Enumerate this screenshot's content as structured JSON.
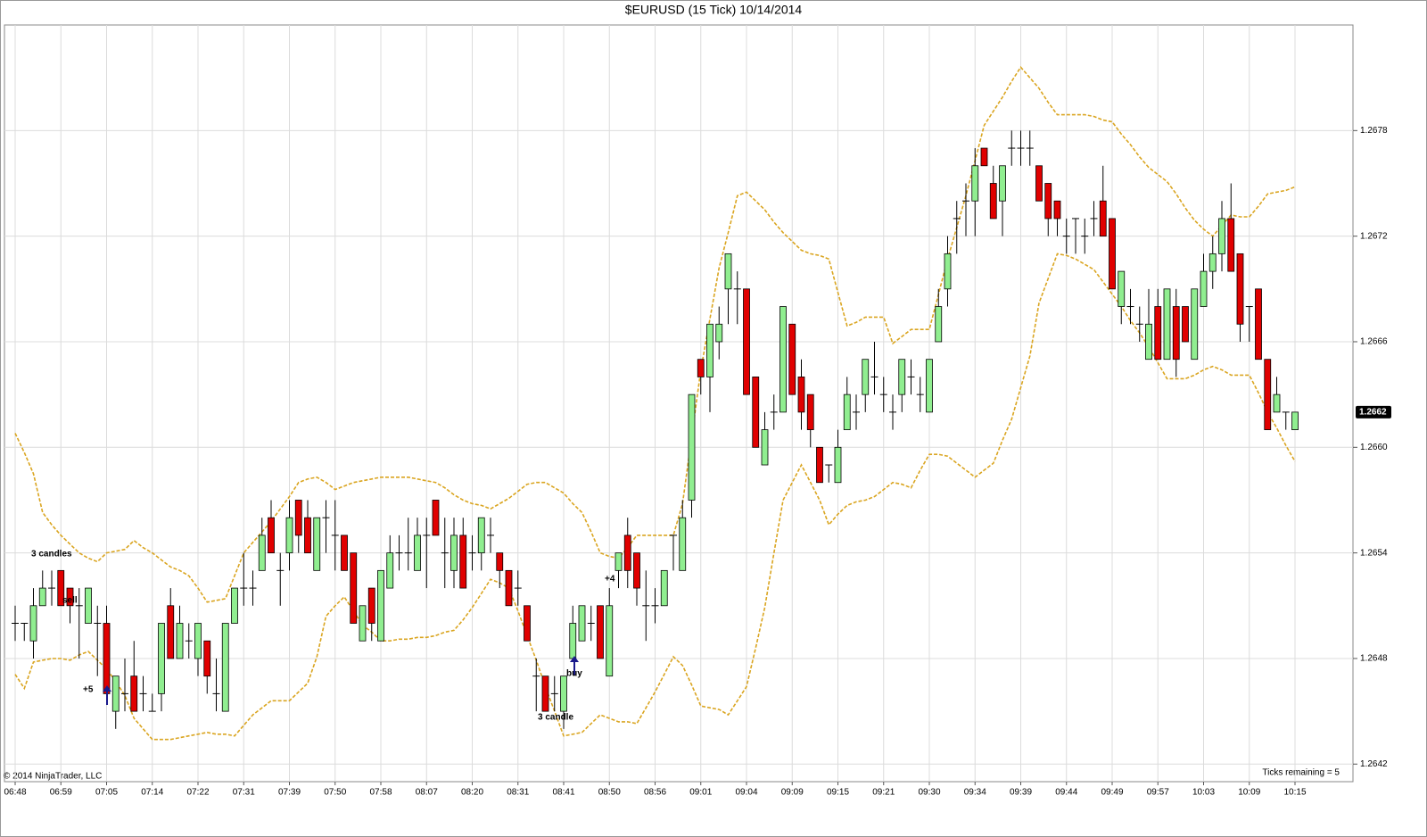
{
  "chart_data": {
    "type": "candlestick",
    "title": "$EURUSD (15 Tick)  10/14/2014",
    "copyright": "© 2014 NinjaTrader, LLC",
    "status": "Ticks remaining = 5",
    "categories": [
      "06:48",
      null,
      null,
      null,
      null,
      "06:59",
      null,
      null,
      null,
      null,
      "07:05",
      null,
      null,
      null,
      null,
      "07:14",
      null,
      null,
      null,
      null,
      "07:22",
      null,
      null,
      null,
      null,
      "07:31",
      null,
      null,
      null,
      null,
      "07:39",
      null,
      null,
      null,
      null,
      "07:50",
      null,
      null,
      null,
      null,
      "07:58",
      null,
      null,
      null,
      null,
      "08:07",
      null,
      null,
      null,
      null,
      "08:20",
      null,
      null,
      null,
      null,
      "08:31",
      null,
      null,
      null,
      null,
      "08:41",
      null,
      null,
      null,
      null,
      "08:50",
      null,
      null,
      null,
      null,
      "08:56",
      null,
      null,
      null,
      null,
      "09:01",
      null,
      null,
      null,
      null,
      "09:04",
      null,
      null,
      null,
      null,
      "09:09",
      null,
      null,
      null,
      null,
      "09:15",
      null,
      null,
      null,
      null,
      "09:21",
      null,
      null,
      null,
      null,
      "09:30",
      null,
      null,
      null,
      null,
      "09:34",
      null,
      null,
      null,
      null,
      "09:39",
      null,
      null,
      null,
      null,
      "09:44",
      null,
      null,
      null,
      null,
      "09:49",
      null,
      null,
      null,
      null,
      "09:57",
      null,
      null,
      null,
      null,
      "10:03",
      null,
      null,
      null,
      null,
      "10:09",
      null,
      null,
      null,
      null,
      "10:15"
    ],
    "open": [
      1.265,
      1.265,
      1.2649,
      1.2651,
      1.2652,
      1.2653,
      1.2652,
      1.2651,
      1.265,
      1.265,
      1.265,
      1.2645,
      1.2646,
      1.2647,
      1.2646,
      1.2645,
      1.2646,
      1.2651,
      1.2648,
      1.2649,
      1.2648,
      1.2649,
      1.2646,
      1.2645,
      1.265,
      1.2652,
      1.2652,
      1.2653,
      1.2656,
      1.2653,
      1.2654,
      1.2657,
      1.2656,
      1.2653,
      1.2656,
      1.2655,
      1.2655,
      1.2654,
      1.2649,
      1.2652,
      1.2649,
      1.2652,
      1.2654,
      1.2654,
      1.2653,
      1.2655,
      1.2657,
      1.2654,
      1.2653,
      1.2655,
      1.2654,
      1.2654,
      1.2655,
      1.2654,
      1.2653,
      1.2652,
      1.2651,
      1.2647,
      1.2647,
      1.2646,
      1.2645,
      1.2648,
      1.2649,
      1.265,
      1.2651,
      1.2647,
      1.2653,
      1.2655,
      1.2654,
      1.2651,
      1.2651,
      1.2651,
      1.2655,
      1.2653,
      1.2657,
      1.2665,
      1.2664,
      1.2666,
      1.2669,
      1.2669,
      1.2669,
      1.2664,
      1.2659,
      1.2662,
      1.2662,
      1.2667,
      1.2664,
      1.2663,
      1.266,
      1.2659,
      1.2658,
      1.2661,
      1.2662,
      1.2663,
      1.2664,
      1.2663,
      1.2662,
      1.2663,
      1.2664,
      1.2663,
      1.2662,
      1.2666,
      1.2669,
      1.2673,
      1.2674,
      1.2674,
      1.2677,
      1.2675,
      1.2674,
      1.2677,
      1.2677,
      1.2677,
      1.2676,
      1.2675,
      1.2674,
      1.2672,
      1.2673,
      1.2672,
      1.2673,
      1.2674,
      1.2673,
      1.2668,
      1.2668,
      1.2667,
      1.2665,
      1.2668,
      1.2665,
      1.2668,
      1.2668,
      1.2665,
      1.2668,
      1.267,
      1.2671,
      1.2673,
      1.2671,
      1.2668,
      1.2669,
      1.2665,
      1.2662,
      1.2662,
      1.2661
    ],
    "high": [
      1.2651,
      1.265,
      1.2652,
      1.2653,
      1.2653,
      1.2653,
      1.2652,
      1.2652,
      1.2652,
      1.2651,
      1.2651,
      1.2647,
      1.2648,
      1.2649,
      1.2647,
      1.2646,
      1.265,
      1.2652,
      1.2651,
      1.265,
      1.265,
      1.2649,
      1.2648,
      1.265,
      1.2652,
      1.2654,
      1.2653,
      1.2656,
      1.2657,
      1.2654,
      1.2657,
      1.2657,
      1.2657,
      1.2656,
      1.2657,
      1.2657,
      1.2655,
      1.2654,
      1.2651,
      1.2652,
      1.2653,
      1.2655,
      1.2655,
      1.2656,
      1.2656,
      1.2656,
      1.2657,
      1.2656,
      1.2656,
      1.2656,
      1.2655,
      1.2656,
      1.2656,
      1.2654,
      1.2653,
      1.2653,
      1.2651,
      1.2648,
      1.2647,
      1.2647,
      1.2647,
      1.2651,
      1.2651,
      1.2651,
      1.2651,
      1.2652,
      1.2654,
      1.2656,
      1.2654,
      1.2653,
      1.2652,
      1.2653,
      1.2655,
      1.2657,
      1.2663,
      1.2665,
      1.2667,
      1.2668,
      1.2671,
      1.267,
      1.2669,
      1.2664,
      1.2662,
      1.2663,
      1.2668,
      1.2667,
      1.2665,
      1.2663,
      1.266,
      1.2659,
      1.2661,
      1.2664,
      1.2663,
      1.2665,
      1.2666,
      1.2664,
      1.2663,
      1.2665,
      1.2665,
      1.2664,
      1.2665,
      1.2669,
      1.2672,
      1.2674,
      1.2675,
      1.2677,
      1.2677,
      1.2676,
      1.2676,
      1.2678,
      1.2678,
      1.2678,
      1.2676,
      1.2675,
      1.2674,
      1.2673,
      1.2673,
      1.2673,
      1.2674,
      1.2676,
      1.2673,
      1.267,
      1.2669,
      1.2668,
      1.2669,
      1.2669,
      1.2669,
      1.2669,
      1.2668,
      1.2669,
      1.2671,
      1.2672,
      1.2674,
      1.2675,
      1.2671,
      1.2668,
      1.2669,
      1.2665,
      1.2664,
      1.2662,
      1.2662
    ],
    "low": [
      1.2649,
      1.2649,
      1.2648,
      1.2651,
      1.2651,
      1.2651,
      1.265,
      1.2648,
      1.265,
      1.2647,
      1.2646,
      1.2644,
      1.2645,
      1.2645,
      1.2645,
      1.2645,
      1.2645,
      1.2648,
      1.2648,
      1.2648,
      1.2647,
      1.2646,
      1.2645,
      1.2645,
      1.265,
      1.2651,
      1.2651,
      1.2653,
      1.2654,
      1.2651,
      1.2653,
      1.2654,
      1.2654,
      1.2653,
      1.2654,
      1.2653,
      1.2653,
      1.265,
      1.2649,
      1.2649,
      1.2649,
      1.2652,
      1.2653,
      1.2653,
      1.2653,
      1.2652,
      1.2655,
      1.2652,
      1.2652,
      1.2652,
      1.2653,
      1.2653,
      1.2654,
      1.2652,
      1.2651,
      1.2651,
      1.2649,
      1.2645,
      1.2645,
      1.2645,
      1.2644,
      1.2648,
      1.2649,
      1.2649,
      1.2648,
      1.2647,
      1.2652,
      1.2652,
      1.2651,
      1.2649,
      1.265,
      1.2651,
      1.2653,
      1.2653,
      1.2656,
      1.2663,
      1.2662,
      1.2665,
      1.2667,
      1.2667,
      1.2663,
      1.266,
      1.2659,
      1.2661,
      1.2662,
      1.2663,
      1.2661,
      1.266,
      1.2658,
      1.2658,
      1.2658,
      1.2661,
      1.2661,
      1.2662,
      1.2663,
      1.2662,
      1.2661,
      1.2662,
      1.2663,
      1.2662,
      1.2662,
      1.2666,
      1.2668,
      1.2671,
      1.2672,
      1.2672,
      1.2676,
      1.2673,
      1.2672,
      1.2676,
      1.2676,
      1.2676,
      1.2674,
      1.2672,
      1.2672,
      1.2671,
      1.2671,
      1.2671,
      1.2672,
      1.2672,
      1.2669,
      1.2667,
      1.2667,
      1.2666,
      1.2665,
      1.2665,
      1.2665,
      1.2664,
      1.2666,
      1.2665,
      1.2668,
      1.2669,
      1.267,
      1.267,
      1.2666,
      1.2666,
      1.2665,
      1.2661,
      1.2662,
      1.2661,
      1.2661
    ],
    "close": [
      1.265,
      1.265,
      1.2651,
      1.2652,
      1.2652,
      1.2651,
      1.2651,
      1.2651,
      1.2652,
      1.265,
      1.2646,
      1.2647,
      1.2646,
      1.2645,
      1.2646,
      1.2645,
      1.265,
      1.2648,
      1.265,
      1.2649,
      1.265,
      1.2647,
      1.2646,
      1.265,
      1.2652,
      1.2652,
      1.2652,
      1.2655,
      1.2654,
      1.2653,
      1.2656,
      1.2655,
      1.2654,
      1.2656,
      1.2656,
      1.2655,
      1.2653,
      1.265,
      1.2651,
      1.265,
      1.2653,
      1.2654,
      1.2654,
      1.2654,
      1.2655,
      1.2655,
      1.2655,
      1.2654,
      1.2655,
      1.2652,
      1.2654,
      1.2656,
      1.2655,
      1.2653,
      1.2651,
      1.2652,
      1.2649,
      1.2647,
      1.2645,
      1.2646,
      1.2647,
      1.265,
      1.2651,
      1.265,
      1.2648,
      1.2651,
      1.2654,
      1.2653,
      1.2652,
      1.2651,
      1.2651,
      1.2653,
      1.2655,
      1.2656,
      1.2663,
      1.2664,
      1.2667,
      1.2667,
      1.2671,
      1.2669,
      1.2663,
      1.266,
      1.2661,
      1.2662,
      1.2668,
      1.2663,
      1.2662,
      1.2661,
      1.2658,
      1.2659,
      1.266,
      1.2663,
      1.2662,
      1.2665,
      1.2664,
      1.2663,
      1.2662,
      1.2665,
      1.2664,
      1.2663,
      1.2665,
      1.2668,
      1.2671,
      1.2673,
      1.2674,
      1.2676,
      1.2676,
      1.2673,
      1.2676,
      1.2677,
      1.2677,
      1.2677,
      1.2674,
      1.2673,
      1.2673,
      1.2672,
      1.2673,
      1.2672,
      1.2673,
      1.2672,
      1.2669,
      1.267,
      1.2668,
      1.2667,
      1.2667,
      1.2665,
      1.2669,
      1.2665,
      1.2666,
      1.2669,
      1.267,
      1.2671,
      1.2673,
      1.267,
      1.2667,
      1.2668,
      1.2665,
      1.2661,
      1.2663,
      1.2662,
      1.2662
    ],
    "up_color": "#90ee90",
    "down_color": "#e00000",
    "bands": [
      {
        "color": "#daa520",
        "values": [
          1.26608,
          1.26597,
          1.26585,
          1.26563,
          1.26556,
          1.2655,
          1.26545,
          1.2654,
          1.26537,
          1.26535,
          1.2654,
          1.26541,
          1.26542,
          1.26547,
          1.26543,
          1.2654,
          1.26536,
          1.26532,
          1.2653,
          1.26527,
          1.2652,
          1.26512,
          1.26513,
          1.26514,
          1.26527,
          1.2654,
          1.26546,
          1.26552,
          1.26558,
          1.26565,
          1.26572,
          1.2658,
          1.26582,
          1.26583,
          1.2658,
          1.26576,
          1.26578,
          1.2658,
          1.26581,
          1.26582,
          1.26583,
          1.26583,
          1.26583,
          1.26583,
          1.26582,
          1.26581,
          1.2658,
          1.26577,
          1.26573,
          1.2657,
          1.26568,
          1.26567,
          1.26565,
          1.26568,
          1.26571,
          1.26575,
          1.26579,
          1.2658,
          1.2658,
          1.26577,
          1.26574,
          1.26568,
          1.26563,
          1.26552,
          1.2654,
          1.26538,
          1.26537,
          1.26543,
          1.2655,
          1.2655,
          1.2655,
          1.2655,
          1.2655,
          1.26568,
          1.26606,
          1.26644,
          1.26673,
          1.26702,
          1.26722,
          1.26743,
          1.26745,
          1.2674,
          1.26735,
          1.26728,
          1.26722,
          1.26717,
          1.26712,
          1.2671,
          1.26709,
          1.26707,
          1.26688,
          1.26669,
          1.26671,
          1.26674,
          1.26674,
          1.26674,
          1.26659,
          1.26663,
          1.26667,
          1.26667,
          1.26667,
          1.26687,
          1.26707,
          1.26725,
          1.26743,
          1.26763,
          1.26783,
          1.26791,
          1.26799,
          1.26808,
          1.26816,
          1.2681,
          1.26804,
          1.26796,
          1.26789,
          1.26789,
          1.26789,
          1.26789,
          1.26788,
          1.26786,
          1.26785,
          1.26778,
          1.26772,
          1.26765,
          1.26759,
          1.26755,
          1.26751,
          1.26744,
          1.26736,
          1.26729,
          1.26724,
          1.2672,
          1.26726,
          1.26732,
          1.26731,
          1.26731,
          1.26737,
          1.26744,
          1.26745,
          1.26746,
          1.26748
        ]
      },
      {
        "color": "#daa520",
        "values": [
          1.26471,
          1.26463,
          1.26478,
          1.26479,
          1.2648,
          1.2648,
          1.26479,
          1.26482,
          1.26484,
          1.26479,
          1.26474,
          1.26467,
          1.26459,
          1.26446,
          1.2644,
          1.26434,
          1.26434,
          1.26434,
          1.26435,
          1.26436,
          1.26437,
          1.26438,
          1.26437,
          1.26437,
          1.26436,
          1.26442,
          1.26448,
          1.26452,
          1.26456,
          1.26456,
          1.26456,
          1.26461,
          1.26466,
          1.26481,
          1.26504,
          1.2651,
          1.26515,
          1.26507,
          1.26499,
          1.26495,
          1.2649,
          1.2649,
          1.26491,
          1.26491,
          1.26492,
          1.26492,
          1.26493,
          1.26495,
          1.26496,
          1.26502,
          1.26509,
          1.26517,
          1.26525,
          1.26523,
          1.2652,
          1.26507,
          1.26493,
          1.26479,
          1.26464,
          1.2645,
          1.26436,
          1.26437,
          1.26438,
          1.26443,
          1.26448,
          1.26446,
          1.26444,
          1.26444,
          1.26443,
          1.26452,
          1.26461,
          1.26471,
          1.26481,
          1.26476,
          1.26465,
          1.26453,
          1.26452,
          1.26451,
          1.26448,
          1.26456,
          1.26464,
          1.26486,
          1.26509,
          1.2654,
          1.2657,
          1.2658,
          1.2659,
          1.2658,
          1.2657,
          1.26556,
          1.26562,
          1.26567,
          1.26569,
          1.2657,
          1.26572,
          1.26576,
          1.2658,
          1.26579,
          1.26577,
          1.26587,
          1.26596,
          1.26596,
          1.26595,
          1.26591,
          1.26587,
          1.26583,
          1.26587,
          1.26591,
          1.26604,
          1.26616,
          1.26634,
          1.26652,
          1.26682,
          1.26696,
          1.2671,
          1.26709,
          1.26707,
          1.26704,
          1.26701,
          1.26694,
          1.26687,
          1.2668,
          1.26672,
          1.26665,
          1.26657,
          1.26648,
          1.26639,
          1.26639,
          1.26639,
          1.26641,
          1.26644,
          1.26646,
          1.26644,
          1.26641,
          1.26641,
          1.26641,
          1.26631,
          1.2662,
          1.26611,
          1.26601,
          1.26592
        ]
      }
    ],
    "ylim": [
      1.2641,
      1.2684
    ],
    "yticks": [
      1.2642,
      1.2648,
      1.2654,
      {
        "value": 1.266,
        "label": "1.2660"
      },
      1.2666,
      1.2672,
      1.2678
    ],
    "last_price": {
      "value": 1.2662,
      "label": "1.2662"
    },
    "annotations": [
      "3 candles",
      "sell",
      "+5",
      "3 candle",
      "buy",
      "+4"
    ],
    "grid": true
  }
}
